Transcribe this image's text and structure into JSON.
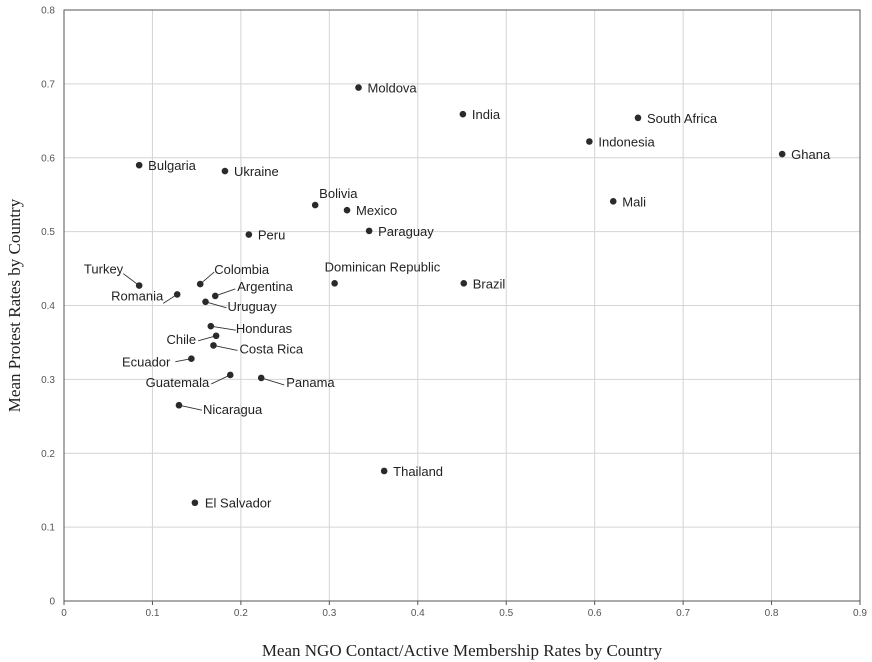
{
  "chart_data": {
    "type": "scatter",
    "xlabel": "Mean NGO Contact/Active Membership Rates by Country",
    "ylabel": "Mean Protest Rates by Country",
    "xlim": [
      0,
      0.9
    ],
    "ylim": [
      0,
      0.8
    ],
    "x_ticks": [
      "0",
      "0.1",
      "0.2",
      "0.3",
      "0.4",
      "0.5",
      "0.6",
      "0.7",
      "0.8",
      "0.9"
    ],
    "y_ticks": [
      "0",
      "0.1",
      "0.2",
      "0.3",
      "0.4",
      "0.5",
      "0.6",
      "0.7",
      "0.8"
    ],
    "grid": true,
    "points": [
      {
        "label": "Moldova",
        "x": 0.333,
        "y": 0.695
      },
      {
        "label": "India",
        "x": 0.451,
        "y": 0.659
      },
      {
        "label": "South Africa",
        "x": 0.649,
        "y": 0.654
      },
      {
        "label": "Indonesia",
        "x": 0.594,
        "y": 0.622
      },
      {
        "label": "Ghana",
        "x": 0.812,
        "y": 0.605
      },
      {
        "label": "Bulgaria",
        "x": 0.085,
        "y": 0.59
      },
      {
        "label": "Ukraine",
        "x": 0.182,
        "y": 0.582
      },
      {
        "label": "Mali",
        "x": 0.621,
        "y": 0.541
      },
      {
        "label": "Bolivia",
        "x": 0.284,
        "y": 0.536
      },
      {
        "label": "Mexico",
        "x": 0.32,
        "y": 0.529
      },
      {
        "label": "Paraguay",
        "x": 0.345,
        "y": 0.501
      },
      {
        "label": "Peru",
        "x": 0.209,
        "y": 0.496
      },
      {
        "label": "Brazil",
        "x": 0.452,
        "y": 0.43
      },
      {
        "label": "Dominican Republic",
        "x": 0.306,
        "y": 0.43
      },
      {
        "label": "Colombia",
        "x": 0.154,
        "y": 0.429
      },
      {
        "label": "Turkey",
        "x": 0.085,
        "y": 0.427
      },
      {
        "label": "Romania",
        "x": 0.128,
        "y": 0.415
      },
      {
        "label": "Argentina",
        "x": 0.171,
        "y": 0.413
      },
      {
        "label": "Uruguay",
        "x": 0.16,
        "y": 0.405
      },
      {
        "label": "Honduras",
        "x": 0.166,
        "y": 0.372
      },
      {
        "label": "Chile",
        "x": 0.172,
        "y": 0.359
      },
      {
        "label": "Costa Rica",
        "x": 0.169,
        "y": 0.346
      },
      {
        "label": "Ecuador",
        "x": 0.144,
        "y": 0.328
      },
      {
        "label": "Guatemala",
        "x": 0.188,
        "y": 0.306
      },
      {
        "label": "Panama",
        "x": 0.223,
        "y": 0.302
      },
      {
        "label": "Nicaragua",
        "x": 0.13,
        "y": 0.265
      },
      {
        "label": "Thailand",
        "x": 0.362,
        "y": 0.176
      },
      {
        "label": "El Salvador",
        "x": 0.148,
        "y": 0.133
      }
    ]
  }
}
